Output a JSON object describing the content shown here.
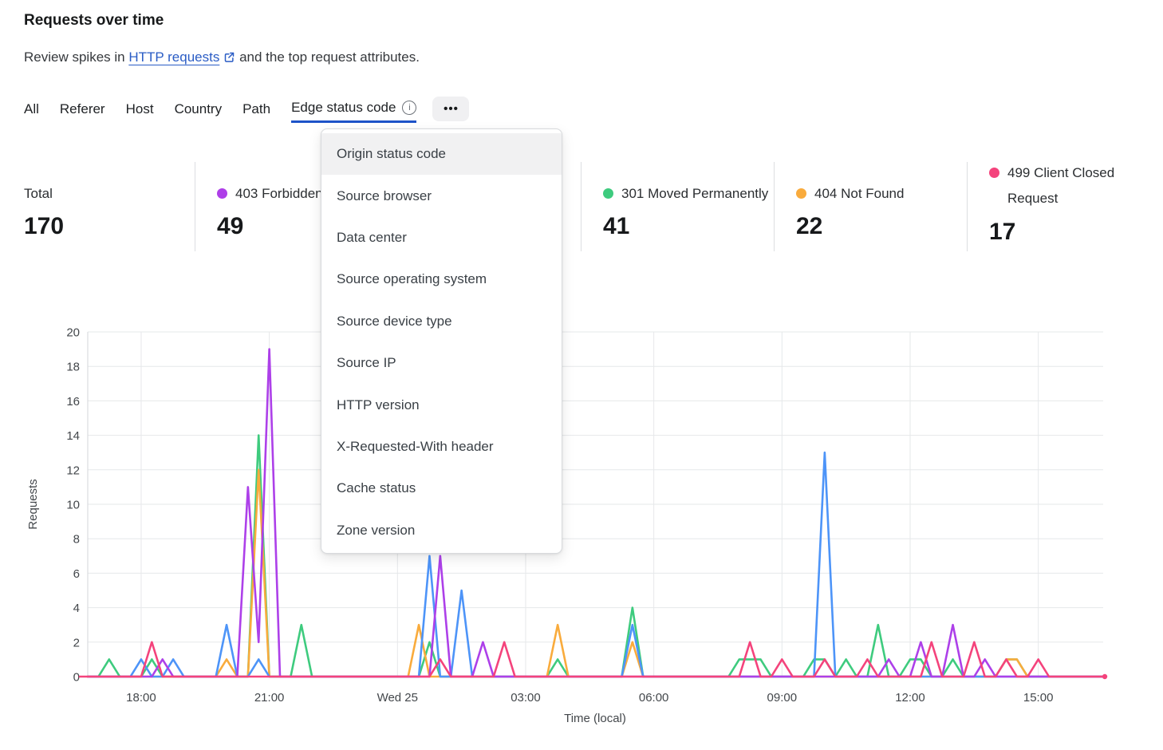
{
  "header": {
    "title": "Requests over time",
    "subtitle_prefix": "Review spikes in ",
    "link_text": "HTTP requests",
    "subtitle_suffix": " and the top request attributes."
  },
  "tabs": {
    "items": [
      "All",
      "Referer",
      "Host",
      "Country",
      "Path",
      "Edge status code"
    ],
    "active": "Edge status code",
    "more_label": "•••"
  },
  "menu": {
    "highlighted": "Origin status code",
    "items": [
      "Origin status code",
      "Source browser",
      "Data center",
      "Source operating system",
      "Source device type",
      "Source IP",
      "HTTP version",
      "X-Requested-With header",
      "Cache status",
      "Zone version"
    ]
  },
  "stats": [
    {
      "label": "Total",
      "value": "170",
      "dot": null,
      "col": 0
    },
    {
      "label": "403 Forbidden",
      "value": "49",
      "dot": "#ae3ee8",
      "col": 1
    },
    {
      "label": "301 Moved Permanently",
      "value": "41",
      "dot": "#3ecb7e",
      "col": 3
    },
    {
      "label": "404 Not Found",
      "value": "22",
      "dot": "#f9ab3c",
      "col": 4
    },
    {
      "label": "499 Client Closed Request",
      "value": "17",
      "dot": "#f4437c",
      "col": 5
    }
  ],
  "chart_data": {
    "type": "line",
    "xlabel": "Time (local)",
    "ylabel": "Requests",
    "ylim": [
      0,
      20
    ],
    "y_ticks": [
      0,
      2,
      4,
      6,
      8,
      10,
      12,
      14,
      16,
      18,
      20
    ],
    "n_points": 96,
    "interval_minutes": 15,
    "x_ticks": [
      {
        "i": 5,
        "label": "18:00"
      },
      {
        "i": 17,
        "label": "21:00"
      },
      {
        "i": 29,
        "label": "Wed 25"
      },
      {
        "i": 41,
        "label": "03:00"
      },
      {
        "i": 53,
        "label": "06:00"
      },
      {
        "i": 65,
        "label": "09:00"
      },
      {
        "i": 77,
        "label": "12:00"
      },
      {
        "i": 89,
        "label": "15:00"
      }
    ],
    "grid": true,
    "legend_position": "top (stat row; one legend entry hidden behind open menu)",
    "series": [
      {
        "name": "301 Moved Permanently",
        "color": "#3ecb7e",
        "points": {
          "2": 1,
          "6": 1,
          "16": 14,
          "20": 3,
          "32": 2,
          "44": 1,
          "51": 4,
          "61": 1,
          "62": 1,
          "63": 1,
          "68": 1,
          "69": 1,
          "71": 1,
          "74": 3,
          "77": 1,
          "78": 1,
          "81": 1,
          "86": 1,
          "87": 1
        }
      },
      {
        "name": "404 Not Found",
        "color": "#f9ab3c",
        "points": {
          "13": 1,
          "16": 12,
          "31": 3,
          "44": 3,
          "51": 2,
          "86": 1,
          "87": 1
        }
      },
      {
        "name": "(legend hidden behind menu)",
        "color": "#4d94f8",
        "points": {
          "5": 1,
          "8": 1,
          "13": 3,
          "16": 1,
          "32": 7,
          "35": 5,
          "51": 3,
          "69": 13
        }
      },
      {
        "name": "403 Forbidden",
        "color": "#ad40e9",
        "points": {
          "7": 1,
          "15": 11,
          "16": 2,
          "17": 19,
          "33": 7,
          "37": 2,
          "75": 1,
          "78": 2,
          "81": 3,
          "84": 1
        }
      },
      {
        "name": "499 Client Closed Request",
        "color": "#f4437c",
        "end_dot": true,
        "lead_dash": true,
        "points": {
          "6": 2,
          "33": 1,
          "39": 2,
          "62": 2,
          "65": 1,
          "69": 1,
          "73": 1,
          "79": 2,
          "83": 2,
          "86": 1,
          "89": 1
        }
      }
    ]
  }
}
